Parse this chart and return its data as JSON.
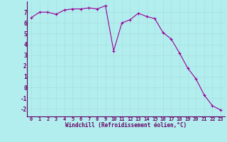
{
  "x": [
    0,
    1,
    2,
    3,
    4,
    5,
    6,
    7,
    8,
    9,
    10,
    11,
    12,
    13,
    14,
    15,
    16,
    17,
    18,
    19,
    20,
    21,
    22,
    23
  ],
  "y": [
    6.5,
    7.0,
    7.0,
    6.8,
    7.2,
    7.3,
    7.3,
    7.4,
    7.3,
    7.6,
    3.4,
    6.0,
    6.3,
    6.9,
    6.6,
    6.4,
    5.1,
    4.5,
    3.2,
    1.8,
    0.8,
    -0.7,
    -1.7,
    -2.1
  ],
  "line_color": "#990099",
  "marker": "+",
  "marker_size": 3,
  "background_color": "#b2eeee",
  "grid_color": "#aadddd",
  "xlabel": "Windchill (Refroidissement éolien,°C)",
  "xlabel_color": "#660066",
  "tick_color": "#660066",
  "spine_color": "#660066",
  "xlim": [
    -0.5,
    23.5
  ],
  "ylim": [
    -2.7,
    8.0
  ],
  "yticks": [
    -2,
    -1,
    0,
    1,
    2,
    3,
    4,
    5,
    6,
    7
  ],
  "xticks": [
    0,
    1,
    2,
    3,
    4,
    5,
    6,
    7,
    8,
    9,
    10,
    11,
    12,
    13,
    14,
    15,
    16,
    17,
    18,
    19,
    20,
    21,
    22,
    23
  ],
  "xtick_fontsize": 5.0,
  "ytick_fontsize": 5.5,
  "xlabel_fontsize": 5.5,
  "linewidth": 0.8,
  "markeredgewidth": 0.8
}
